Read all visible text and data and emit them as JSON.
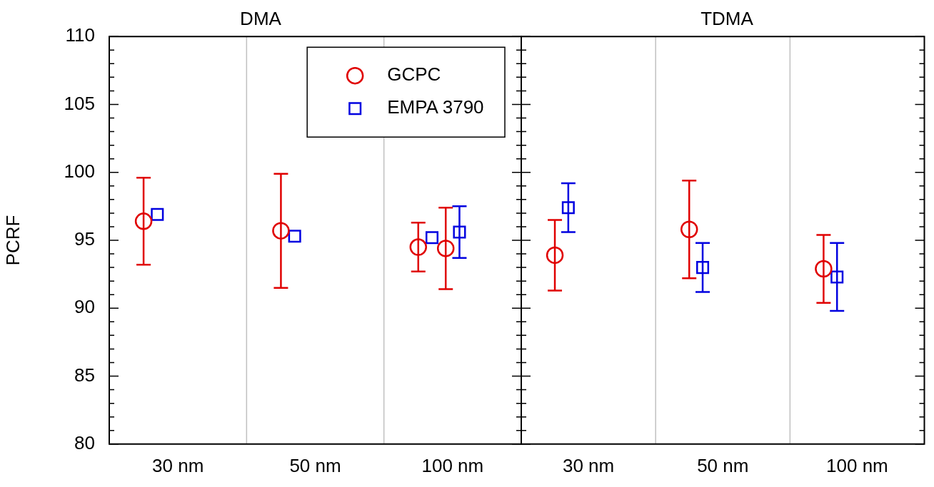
{
  "chart_data": [
    {
      "type": "scatter",
      "title": "DMA",
      "ylabel": "PCRF",
      "categories": [
        "30 nm",
        "50 nm",
        "100 nm"
      ],
      "ylim": [
        80,
        110
      ],
      "yticks": [
        80,
        {
          "value": 81,
          "label": null
        },
        {
          "value": 82,
          "label": null
        },
        {
          "value": 83,
          "label": null
        },
        {
          "value": 84,
          "label": null
        },
        85,
        {
          "value": 86,
          "label": null
        },
        {
          "value": 87,
          "label": null
        },
        {
          "value": 88,
          "label": null
        },
        {
          "value": 89,
          "label": null
        },
        90,
        {
          "value": 91,
          "label": null
        },
        {
          "value": 92,
          "label": null
        },
        {
          "value": 93,
          "label": null
        },
        {
          "value": 94,
          "label": null
        },
        95,
        {
          "value": 96,
          "label": null
        },
        {
          "value": 97,
          "label": null
        },
        {
          "value": 98,
          "label": null
        },
        {
          "value": 99,
          "label": null
        },
        100,
        {
          "value": 101,
          "label": null
        },
        {
          "value": 102,
          "label": null
        },
        {
          "value": 103,
          "label": null
        },
        {
          "value": 104,
          "label": null
        },
        105,
        {
          "value": 106,
          "label": null
        },
        {
          "value": 107,
          "label": null
        },
        {
          "value": 108,
          "label": null
        },
        {
          "value": 109,
          "label": null
        },
        110
      ],
      "grid": "x",
      "legend": "top right",
      "series": [
        {
          "name": "GCPC",
          "color": "#e00000",
          "marker": "circle",
          "x": [
            "30 nm",
            "50 nm",
            "100 nm",
            "100 nm"
          ],
          "values": [
            96.4,
            95.7,
            94.5,
            94.4
          ],
          "errors": [
            3.2,
            4.2,
            1.8,
            3.0
          ]
        },
        {
          "name": "EMPA 3790",
          "color": "#0000e0",
          "marker": "square",
          "x": [
            "30 nm",
            "50 nm",
            "100 nm",
            "100 nm"
          ],
          "values": [
            96.9,
            95.3,
            95.2,
            95.6
          ],
          "errors": [
            null,
            null,
            null,
            1.9
          ]
        }
      ]
    },
    {
      "type": "scatter",
      "title": "TDMA",
      "categories": [
        "30 nm",
        "50 nm",
        "100 nm"
      ],
      "ylim": [
        80,
        110
      ],
      "yticks": [
        80,
        {
          "value": 81,
          "label": null
        },
        {
          "value": 82,
          "label": null
        },
        {
          "value": 83,
          "label": null
        },
        {
          "value": 84,
          "label": null
        },
        85,
        {
          "value": 86,
          "label": null
        },
        {
          "value": 87,
          "label": null
        },
        {
          "value": 88,
          "label": null
        },
        {
          "value": 89,
          "label": null
        },
        90,
        {
          "value": 91,
          "label": null
        },
        {
          "value": 92,
          "label": null
        },
        {
          "value": 93,
          "label": null
        },
        {
          "value": 94,
          "label": null
        },
        95,
        {
          "value": 96,
          "label": null
        },
        {
          "value": 97,
          "label": null
        },
        {
          "value": 98,
          "label": null
        },
        {
          "value": 99,
          "label": null
        },
        100,
        {
          "value": 101,
          "label": null
        },
        {
          "value": 102,
          "label": null
        },
        {
          "value": 103,
          "label": null
        },
        {
          "value": 104,
          "label": null
        },
        105,
        {
          "value": 106,
          "label": null
        },
        {
          "value": 107,
          "label": null
        },
        {
          "value": 108,
          "label": null
        },
        {
          "value": 109,
          "label": null
        },
        110
      ],
      "tick_labels": "x",
      "grid": "x",
      "series": [
        {
          "color": "#e00000",
          "marker": "circle",
          "x": [
            "30 nm",
            "50 nm",
            "100 nm"
          ],
          "values": [
            93.9,
            95.8,
            92.9
          ],
          "errors": [
            2.6,
            3.6,
            2.5
          ]
        },
        {
          "color": "#0000e0",
          "marker": "square",
          "x": [
            "30 nm",
            "50 nm",
            "100 nm"
          ],
          "values": [
            97.4,
            93.0,
            92.3
          ],
          "errors": [
            1.8,
            1.8,
            2.5
          ]
        }
      ]
    }
  ]
}
